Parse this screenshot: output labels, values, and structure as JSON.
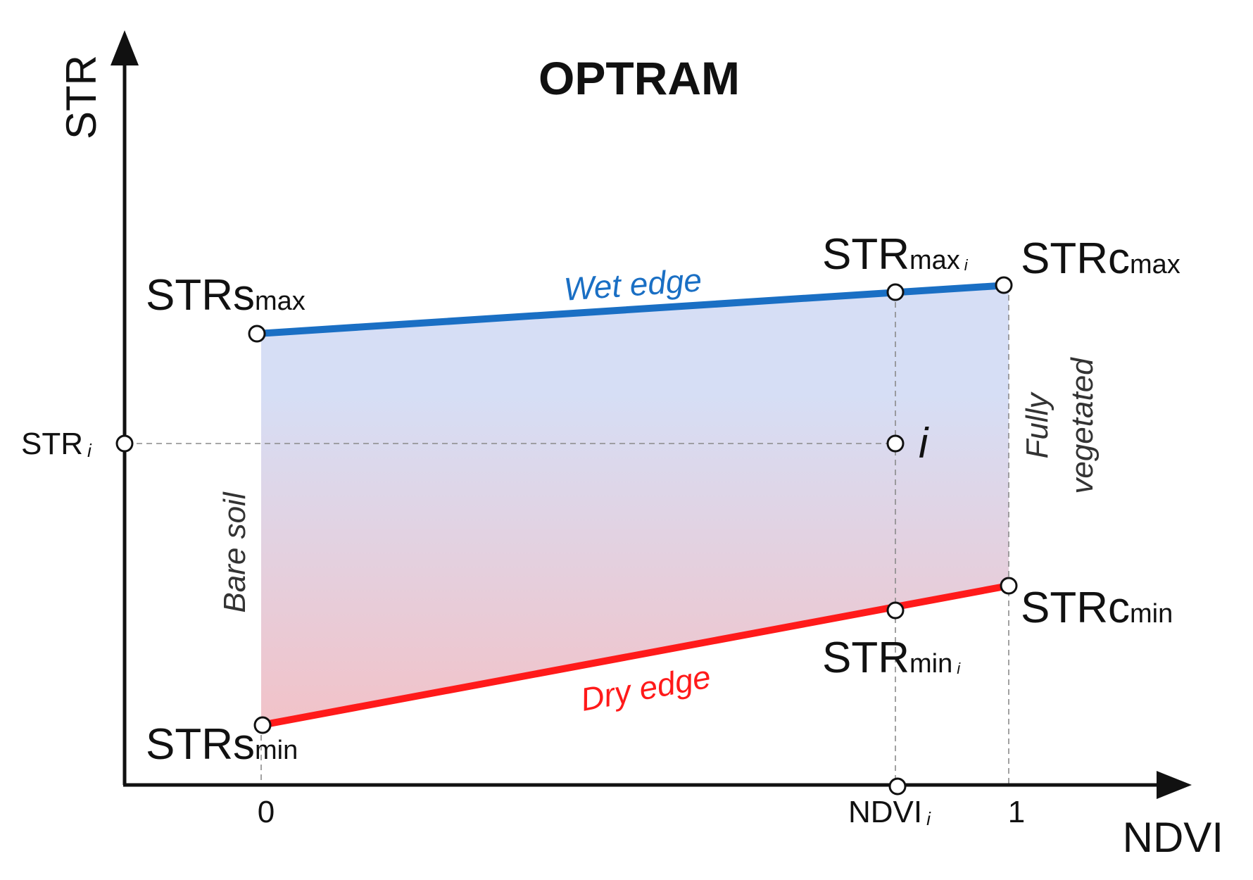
{
  "diagram": {
    "title": "OPTRAM",
    "x_axis_label": "NDVI",
    "y_axis_label": "STR",
    "x_ticks": {
      "zero": "0",
      "one": "1"
    },
    "ndvi_i": {
      "main": "NDVI",
      "sub": "i"
    },
    "str_i": {
      "main": "STR",
      "sub": "i"
    },
    "point_i": "i",
    "str_s_max": {
      "main": "STRs",
      "sub": "max"
    },
    "str_s_min": {
      "main": "STRs",
      "sub": "min"
    },
    "str_c_max": {
      "main": "STRc",
      "sub": "max"
    },
    "str_c_min": {
      "main": "STRc",
      "sub": "min"
    },
    "str_max_i": {
      "main": "STR",
      "sub": "max",
      "subsub": "i"
    },
    "str_min_i": {
      "main": "STR",
      "sub": "min",
      "subsub": "i"
    },
    "wet_edge": "Wet edge",
    "dry_edge": "Dry edge",
    "bare_soil": "Bare soil",
    "fully": "Fully",
    "vegetated": "vegetated",
    "colors": {
      "wet_edge": "#1a6fc4",
      "dry_edge": "#ff1a1a",
      "fill_top": "#d6def5",
      "fill_bottom": "#f2c2c8"
    }
  }
}
